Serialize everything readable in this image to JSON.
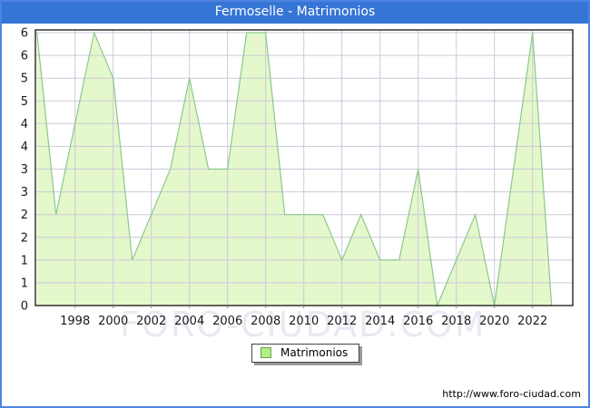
{
  "window": {
    "title": "Fermoselle - Matrimonios"
  },
  "legend": {
    "label": "Matrimonios"
  },
  "footer": {
    "url": "http://www.foro-ciudad.com"
  },
  "watermark": {
    "text": "FORO-CIUDAD.COM"
  },
  "colors": {
    "title_bar": "#3575d5",
    "frame_border": "#4c83e0",
    "area_fill": "#e4f8cb",
    "line": "#8cc88c",
    "grid": "#ccc9d9",
    "plot_frame": "#000000",
    "legend_swatch": "#b3ee85",
    "watermark": "#e9e9f2",
    "tick_text": "#1a1a1a"
  },
  "chart_data": {
    "type": "area",
    "title": "Fermoselle - Matrimonios",
    "series_name": "Matrimonios",
    "x": [
      1996,
      1997,
      1998,
      1999,
      2000,
      2001,
      2002,
      2003,
      2004,
      2005,
      2006,
      2007,
      2008,
      2009,
      2010,
      2011,
      2012,
      2013,
      2014,
      2015,
      2016,
      2017,
      2018,
      2019,
      2020,
      2021,
      2022,
      2023
    ],
    "values": [
      6,
      2,
      4,
      6,
      5,
      1,
      2,
      3,
      5,
      3,
      3,
      6,
      6,
      2,
      2,
      2,
      1,
      2,
      1,
      1,
      3,
      0,
      1,
      2,
      0,
      3,
      6,
      0
    ],
    "xlabel": "",
    "ylabel": "",
    "ylim": [
      0,
      6
    ],
    "y_tick_step": 0.5,
    "y_tick_labels_top_to_bottom": [
      "6",
      "6",
      "5",
      "5",
      "4",
      "4",
      "3",
      "3",
      "2",
      "2",
      "1",
      "1",
      "0"
    ],
    "x_tick_years": [
      1998,
      2000,
      2002,
      2004,
      2006,
      2008,
      2010,
      2012,
      2014,
      2016,
      2018,
      2020,
      2022
    ],
    "grid": true,
    "legend_position": "bottom-center"
  }
}
